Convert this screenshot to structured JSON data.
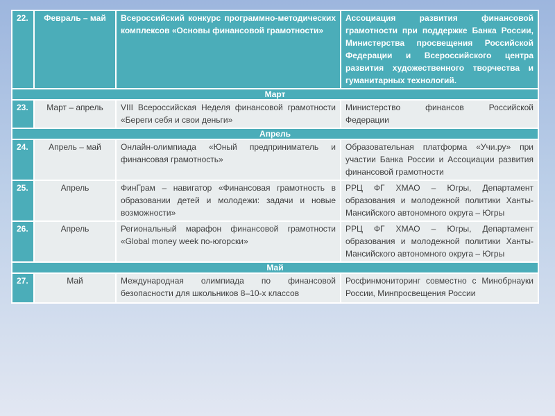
{
  "slide": {
    "colors": {
      "accent_teal": "#4badb9",
      "row_light": "#e9edee",
      "background_top": "#9db6de",
      "background_bottom": "#e2e7f2",
      "text_dark": "#3f3f3f",
      "text_light": "#ffffff"
    },
    "rows": [
      {
        "num": "22.",
        "date": "Февраль – май",
        "event": "Всероссийский конкурс программно-методических комплексов «Основы финансовой грамотности»",
        "org": "Ассоциация развития финансовой грамотности при поддержке Банка России, Министерства просвещения Российской Федерации и Всероссийского центра развития художественного творчества и гуманитарных технологий."
      },
      {
        "label": "Март"
      },
      {
        "num": "23.",
        "date": "Март – апрель",
        "event": "VIII Всероссийская Неделя финансовой грамотности «Береги себя и свои деньги»",
        "org": "Министерство финансов Российской Федерации"
      },
      {
        "label": "Апрель"
      },
      {
        "num": "24.",
        "date": "Апрель – май",
        "event": "Онлайн-олимпиада «Юный предприниматель и финансовая грамотность»",
        "org": "Образовательная платформа «Учи.ру» при участии Банка России и Ассоциации развития финансовой грамотности"
      },
      {
        "num": "25.",
        "date": "Апрель",
        "event": "ФинГрам – навигатор «Финансовая грамотность в образовании детей и молодежи: задачи и новые возможности»",
        "org": "РРЦ ФГ ХМАО – Югры, Департамент образования и молодежной политики Ханты-Мансийского автономного округа – Югры"
      },
      {
        "num": "26.",
        "date": "Апрель",
        "event": "Региональный марафон финансовой грамотности «Global money week по-югорски»",
        "org": "РРЦ ФГ ХМАО – Югры, Департамент образования и молодежной политики Ханты-Мансийского автономного округа – Югры"
      },
      {
        "label": "Май"
      },
      {
        "num": "27.",
        "date": "Май",
        "event": "Международная олимпиада по финансовой безопасности для школьников 8–10-х классов",
        "org": "Росфинмониторинг совместно с Минобрнауки России, Минпросвещения России"
      }
    ]
  }
}
